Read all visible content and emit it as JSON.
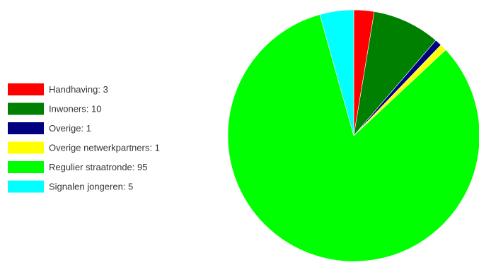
{
  "chart_data": {
    "type": "pie",
    "title": "",
    "legend_position": "left",
    "slices": [
      {
        "label": "Handhaving: 3",
        "category": "Handhaving",
        "value": 3,
        "color": "#ff0000"
      },
      {
        "label": "Inwoners: 10",
        "category": "Inwoners",
        "value": 10,
        "color": "#008000"
      },
      {
        "label": "Overige: 1",
        "category": "Overige",
        "value": 1,
        "color": "#000080"
      },
      {
        "label": "Overige netwerkpartners: 1",
        "category": "Overige netwerkpartners",
        "value": 1,
        "color": "#ffff00"
      },
      {
        "label": "Regulier straatronde: 95",
        "category": "Regulier straatronde",
        "value": 95,
        "color": "#00ff00"
      },
      {
        "label": "Signalen jongeren: 5",
        "category": "Signalen jongeren",
        "value": 5,
        "color": "#00ffff"
      }
    ]
  }
}
